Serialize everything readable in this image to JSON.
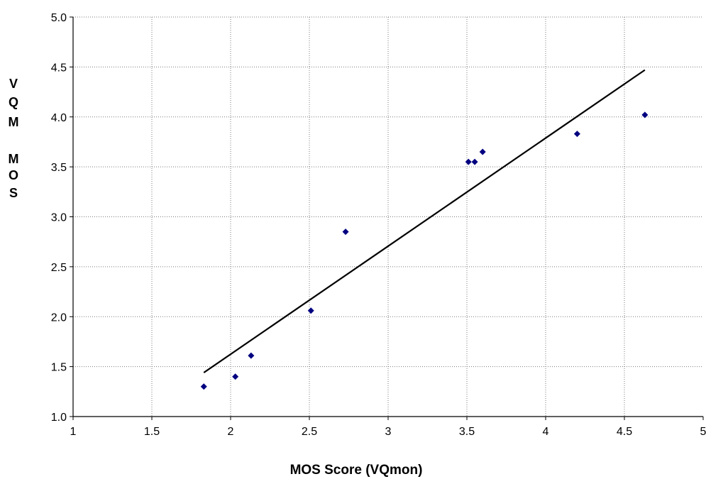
{
  "chart_data": {
    "type": "scatter",
    "title": "",
    "xlabel": "MOS Score (VQmon)",
    "ylabel": "VQM MOS",
    "ylabel_lines": [
      "V",
      "Q",
      "M",
      "",
      "M",
      "O",
      "S"
    ],
    "xlim": [
      1,
      5
    ],
    "ylim": [
      1.0,
      5.0
    ],
    "xticks": [
      "1",
      "1.5",
      "2",
      "2.5",
      "3",
      "3.5",
      "4",
      "4.5",
      "5"
    ],
    "xtick_values": [
      1,
      1.5,
      2,
      2.5,
      3,
      3.5,
      4,
      4.5,
      5
    ],
    "yticks": [
      "1.0",
      "1.5",
      "2.0",
      "2.5",
      "3.0",
      "3.5",
      "4.0",
      "4.5",
      "5.0"
    ],
    "ytick_values": [
      1.0,
      1.5,
      2.0,
      2.5,
      3.0,
      3.5,
      4.0,
      4.5,
      5.0
    ],
    "grid": true,
    "legend": "none",
    "series": [
      {
        "marker": "diamond",
        "color": "#000080",
        "points": [
          {
            "x": 1.83,
            "y": 1.3
          },
          {
            "x": 2.03,
            "y": 1.4
          },
          {
            "x": 2.13,
            "y": 1.61
          },
          {
            "x": 2.51,
            "y": 2.06
          },
          {
            "x": 2.73,
            "y": 2.85
          },
          {
            "x": 3.51,
            "y": 3.55
          },
          {
            "x": 3.55,
            "y": 3.55
          },
          {
            "x": 3.6,
            "y": 3.65
          },
          {
            "x": 4.2,
            "y": 3.83
          },
          {
            "x": 4.63,
            "y": 4.02
          }
        ]
      }
    ],
    "trendline": {
      "color": "#000000",
      "x": [
        1.83,
        4.63
      ],
      "y": [
        1.44,
        4.47
      ]
    }
  }
}
